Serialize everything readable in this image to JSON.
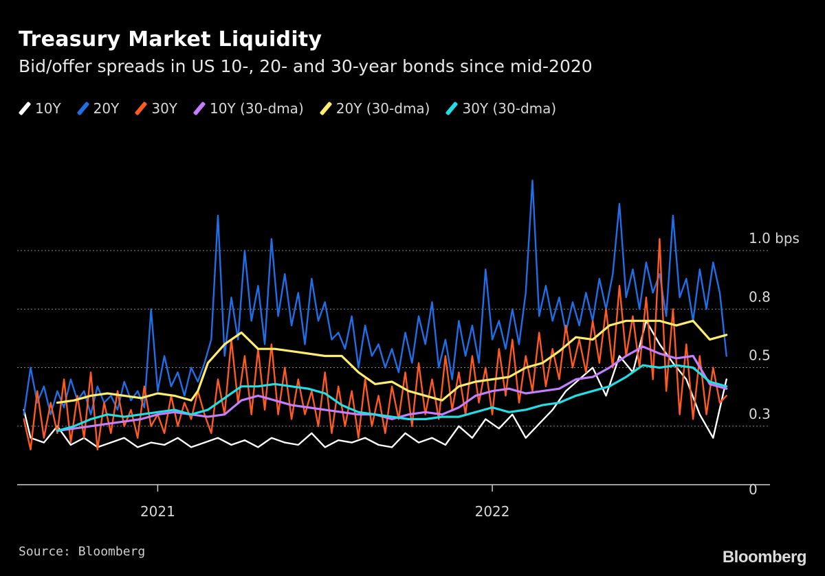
{
  "header": {
    "title": "Treasury Market Liquidity",
    "subtitle": "Bid/offer spreads in US 10-, 20- and 30-year bonds since mid-2020"
  },
  "footer": {
    "source": "Source: Bloomberg",
    "brand": "Bloomberg"
  },
  "colors": {
    "background": "#000000",
    "grid": "#8a8a8a",
    "axis": "#cfcfcf"
  },
  "chart_data": {
    "type": "line",
    "title": "Treasury Market Liquidity",
    "ylabel": "bps",
    "ylim": [
      0,
      1.2
    ],
    "yticks": [
      {
        "value": 1.0,
        "label": "1.0 bps"
      },
      {
        "value": 0.75,
        "label": "0.8"
      },
      {
        "value": 0.5,
        "label": "0.5"
      },
      {
        "value": 0.25,
        "label": "0.3"
      },
      {
        "value": 0.0,
        "label": "0"
      }
    ],
    "xlim": [
      2020.58,
      2022.83
    ],
    "xticks": [
      {
        "value": 2021.0,
        "label": "2021"
      },
      {
        "value": 2022.0,
        "label": "2022"
      }
    ],
    "grid": true,
    "legend_position": "top",
    "series": [
      {
        "name": "10Y",
        "color": "#ffffff",
        "width": 2.4,
        "x": [
          2020.6,
          2020.62,
          2020.66,
          2020.7,
          2020.74,
          2020.78,
          2020.82,
          2020.86,
          2020.9,
          2020.94,
          2020.98,
          2021.02,
          2021.06,
          2021.1,
          2021.14,
          2021.18,
          2021.22,
          2021.26,
          2021.3,
          2021.34,
          2021.38,
          2021.42,
          2021.46,
          2021.5,
          2021.54,
          2021.58,
          2021.62,
          2021.66,
          2021.7,
          2021.74,
          2021.78,
          2021.82,
          2021.86,
          2021.9,
          2021.94,
          2021.98,
          2022.02,
          2022.06,
          2022.1,
          2022.14,
          2022.18,
          2022.22,
          2022.26,
          2022.3,
          2022.34,
          2022.38,
          2022.42,
          2022.46,
          2022.5,
          2022.54,
          2022.58,
          2022.62,
          2022.66,
          2022.7
        ],
        "values": [
          0.32,
          0.2,
          0.18,
          0.25,
          0.17,
          0.2,
          0.16,
          0.18,
          0.2,
          0.16,
          0.18,
          0.17,
          0.2,
          0.16,
          0.18,
          0.2,
          0.17,
          0.19,
          0.16,
          0.2,
          0.18,
          0.17,
          0.22,
          0.16,
          0.19,
          0.18,
          0.2,
          0.17,
          0.16,
          0.22,
          0.18,
          0.2,
          0.17,
          0.25,
          0.2,
          0.28,
          0.24,
          0.3,
          0.2,
          0.26,
          0.32,
          0.4,
          0.45,
          0.5,
          0.38,
          0.55,
          0.48,
          0.7,
          0.6,
          0.52,
          0.45,
          0.3,
          0.2,
          0.45
        ]
      },
      {
        "name": "20Y",
        "color": "#1f6fe8",
        "width": 2.4,
        "x": [
          2020.6,
          2020.62,
          2020.64,
          2020.66,
          2020.68,
          2020.7,
          2020.72,
          2020.74,
          2020.76,
          2020.78,
          2020.8,
          2020.82,
          2020.84,
          2020.86,
          2020.88,
          2020.9,
          2020.92,
          2020.94,
          2020.96,
          2020.98,
          2021.0,
          2021.02,
          2021.04,
          2021.06,
          2021.08,
          2021.1,
          2021.12,
          2021.14,
          2021.16,
          2021.18,
          2021.2,
          2021.22,
          2021.24,
          2021.26,
          2021.28,
          2021.3,
          2021.32,
          2021.34,
          2021.36,
          2021.38,
          2021.4,
          2021.42,
          2021.44,
          2021.46,
          2021.48,
          2021.5,
          2021.52,
          2021.54,
          2021.56,
          2021.58,
          2021.6,
          2021.62,
          2021.64,
          2021.66,
          2021.68,
          2021.7,
          2021.72,
          2021.74,
          2021.76,
          2021.78,
          2021.8,
          2021.82,
          2021.84,
          2021.86,
          2021.88,
          2021.9,
          2021.92,
          2021.94,
          2021.96,
          2021.98,
          2022.0,
          2022.02,
          2022.04,
          2022.06,
          2022.08,
          2022.1,
          2022.12,
          2022.14,
          2022.16,
          2022.18,
          2022.2,
          2022.22,
          2022.24,
          2022.26,
          2022.28,
          2022.3,
          2022.32,
          2022.34,
          2022.36,
          2022.38,
          2022.4,
          2022.42,
          2022.44,
          2022.46,
          2022.48,
          2022.5,
          2022.52,
          2022.54,
          2022.56,
          2022.58,
          2022.6,
          2022.62,
          2022.64,
          2022.66,
          2022.68,
          2022.7
        ],
        "values": [
          0.3,
          0.5,
          0.35,
          0.42,
          0.3,
          0.4,
          0.33,
          0.45,
          0.36,
          0.4,
          0.3,
          0.42,
          0.35,
          0.38,
          0.32,
          0.44,
          0.36,
          0.4,
          0.33,
          0.75,
          0.4,
          0.55,
          0.42,
          0.48,
          0.38,
          0.5,
          0.44,
          0.52,
          0.62,
          1.15,
          0.55,
          0.8,
          0.62,
          1.0,
          0.7,
          0.85,
          0.6,
          1.05,
          0.72,
          0.9,
          0.68,
          0.82,
          0.6,
          0.88,
          0.7,
          0.78,
          0.62,
          0.65,
          0.58,
          0.72,
          0.5,
          0.68,
          0.55,
          0.6,
          0.5,
          0.58,
          0.48,
          0.65,
          0.52,
          0.72,
          0.6,
          0.78,
          0.5,
          0.62,
          0.45,
          0.7,
          0.55,
          0.68,
          0.52,
          0.92,
          0.62,
          0.7,
          0.58,
          0.75,
          0.6,
          0.82,
          1.3,
          0.72,
          0.85,
          0.7,
          0.8,
          0.65,
          0.78,
          0.68,
          0.82,
          0.7,
          0.88,
          0.75,
          0.9,
          1.2,
          0.8,
          0.92,
          0.75,
          0.95,
          0.82,
          0.9,
          0.72,
          1.15,
          0.8,
          0.88,
          0.7,
          0.92,
          0.75,
          0.95,
          0.82,
          0.55
        ]
      },
      {
        "name": "30Y",
        "color": "#ff5a1f",
        "width": 2.4,
        "x": [
          2020.6,
          2020.62,
          2020.64,
          2020.66,
          2020.68,
          2020.7,
          2020.72,
          2020.74,
          2020.76,
          2020.78,
          2020.8,
          2020.82,
          2020.84,
          2020.86,
          2020.88,
          2020.9,
          2020.92,
          2020.94,
          2020.96,
          2020.98,
          2021.0,
          2021.02,
          2021.04,
          2021.06,
          2021.08,
          2021.1,
          2021.12,
          2021.14,
          2021.16,
          2021.18,
          2021.2,
          2021.22,
          2021.24,
          2021.26,
          2021.28,
          2021.3,
          2021.32,
          2021.34,
          2021.36,
          2021.38,
          2021.4,
          2021.42,
          2021.44,
          2021.46,
          2021.48,
          2021.5,
          2021.52,
          2021.54,
          2021.56,
          2021.58,
          2021.6,
          2021.62,
          2021.64,
          2021.66,
          2021.68,
          2021.7,
          2021.72,
          2021.74,
          2021.76,
          2021.78,
          2021.8,
          2021.82,
          2021.84,
          2021.86,
          2021.88,
          2021.9,
          2021.92,
          2021.94,
          2021.96,
          2021.98,
          2022.0,
          2022.02,
          2022.04,
          2022.06,
          2022.08,
          2022.1,
          2022.12,
          2022.14,
          2022.16,
          2022.18,
          2022.2,
          2022.22,
          2022.24,
          2022.26,
          2022.28,
          2022.3,
          2022.32,
          2022.34,
          2022.36,
          2022.38,
          2022.4,
          2022.42,
          2022.44,
          2022.46,
          2022.48,
          2022.5,
          2022.52,
          2022.54,
          2022.56,
          2022.58,
          2022.6,
          2022.62,
          2022.64,
          2022.66,
          2022.68,
          2022.7
        ],
        "values": [
          0.28,
          0.15,
          0.4,
          0.2,
          0.35,
          0.22,
          0.45,
          0.18,
          0.38,
          0.2,
          0.48,
          0.15,
          0.35,
          0.22,
          0.4,
          0.25,
          0.32,
          0.2,
          0.42,
          0.25,
          0.3,
          0.22,
          0.38,
          0.25,
          0.35,
          0.28,
          0.4,
          0.3,
          0.22,
          0.45,
          0.3,
          0.62,
          0.35,
          0.55,
          0.3,
          0.58,
          0.32,
          0.6,
          0.3,
          0.5,
          0.28,
          0.45,
          0.3,
          0.4,
          0.25,
          0.48,
          0.22,
          0.42,
          0.25,
          0.4,
          0.2,
          0.45,
          0.25,
          0.38,
          0.22,
          0.42,
          0.28,
          0.48,
          0.25,
          0.52,
          0.3,
          0.45,
          0.28,
          0.55,
          0.32,
          0.48,
          0.3,
          0.55,
          0.35,
          0.5,
          0.3,
          0.58,
          0.38,
          0.62,
          0.35,
          0.55,
          0.4,
          0.65,
          0.42,
          0.58,
          0.45,
          0.68,
          0.5,
          0.62,
          0.48,
          0.7,
          0.52,
          0.75,
          0.5,
          0.85,
          0.55,
          0.72,
          0.5,
          0.8,
          0.45,
          1.05,
          0.4,
          0.75,
          0.3,
          0.6,
          0.28,
          0.55,
          0.3,
          0.5,
          0.35,
          0.38
        ]
      },
      {
        "name": "10Y (30-dma)",
        "color": "#c77dff",
        "width": 3.2,
        "x": [
          2020.7,
          2020.75,
          2020.8,
          2020.85,
          2020.9,
          2020.95,
          2021.0,
          2021.05,
          2021.1,
          2021.15,
          2021.2,
          2021.25,
          2021.3,
          2021.35,
          2021.4,
          2021.45,
          2021.5,
          2021.55,
          2021.6,
          2021.65,
          2021.7,
          2021.75,
          2021.8,
          2021.85,
          2021.9,
          2021.95,
          2022.0,
          2022.05,
          2022.1,
          2022.15,
          2022.2,
          2022.25,
          2022.3,
          2022.35,
          2022.4,
          2022.45,
          2022.5,
          2022.55,
          2022.6,
          2022.65,
          2022.7
        ],
        "values": [
          0.23,
          0.24,
          0.25,
          0.26,
          0.27,
          0.28,
          0.3,
          0.31,
          0.3,
          0.29,
          0.3,
          0.36,
          0.38,
          0.36,
          0.34,
          0.33,
          0.32,
          0.31,
          0.3,
          0.3,
          0.28,
          0.3,
          0.31,
          0.3,
          0.33,
          0.38,
          0.4,
          0.41,
          0.39,
          0.4,
          0.41,
          0.45,
          0.46,
          0.5,
          0.55,
          0.59,
          0.56,
          0.54,
          0.55,
          0.43,
          0.41
        ]
      },
      {
        "name": "20Y (30-dma)",
        "color": "#ffee6b",
        "width": 3.2,
        "x": [
          2020.7,
          2020.75,
          2020.8,
          2020.85,
          2020.9,
          2020.95,
          2021.0,
          2021.05,
          2021.1,
          2021.12,
          2021.15,
          2021.2,
          2021.25,
          2021.3,
          2021.35,
          2021.4,
          2021.45,
          2021.5,
          2021.55,
          2021.6,
          2021.65,
          2021.7,
          2021.75,
          2021.8,
          2021.85,
          2021.9,
          2021.95,
          2022.0,
          2022.05,
          2022.1,
          2022.15,
          2022.2,
          2022.25,
          2022.3,
          2022.35,
          2022.4,
          2022.45,
          2022.5,
          2022.55,
          2022.6,
          2022.65,
          2022.7
        ],
        "values": [
          0.35,
          0.36,
          0.38,
          0.39,
          0.38,
          0.37,
          0.39,
          0.38,
          0.36,
          0.4,
          0.52,
          0.6,
          0.65,
          0.58,
          0.58,
          0.57,
          0.56,
          0.55,
          0.55,
          0.48,
          0.43,
          0.44,
          0.4,
          0.38,
          0.36,
          0.42,
          0.44,
          0.45,
          0.46,
          0.5,
          0.52,
          0.57,
          0.63,
          0.62,
          0.68,
          0.7,
          0.7,
          0.7,
          0.68,
          0.7,
          0.62,
          0.64
        ]
      },
      {
        "name": "30Y (30-dma)",
        "color": "#1ee0e6",
        "width": 3.2,
        "x": [
          2020.7,
          2020.75,
          2020.8,
          2020.85,
          2020.9,
          2020.95,
          2021.0,
          2021.05,
          2021.1,
          2021.15,
          2021.2,
          2021.25,
          2021.3,
          2021.35,
          2021.4,
          2021.45,
          2021.5,
          2021.55,
          2021.6,
          2021.65,
          2021.7,
          2021.75,
          2021.8,
          2021.85,
          2021.9,
          2021.95,
          2022.0,
          2022.05,
          2022.1,
          2022.15,
          2022.2,
          2022.25,
          2022.3,
          2022.35,
          2022.4,
          2022.45,
          2022.5,
          2022.55,
          2022.6,
          2022.65,
          2022.7
        ],
        "values": [
          0.23,
          0.25,
          0.28,
          0.3,
          0.29,
          0.3,
          0.31,
          0.32,
          0.3,
          0.32,
          0.37,
          0.42,
          0.42,
          0.43,
          0.42,
          0.41,
          0.39,
          0.34,
          0.31,
          0.3,
          0.29,
          0.28,
          0.28,
          0.29,
          0.29,
          0.31,
          0.33,
          0.31,
          0.32,
          0.34,
          0.35,
          0.38,
          0.4,
          0.42,
          0.46,
          0.51,
          0.5,
          0.51,
          0.5,
          0.44,
          0.42
        ]
      }
    ]
  }
}
